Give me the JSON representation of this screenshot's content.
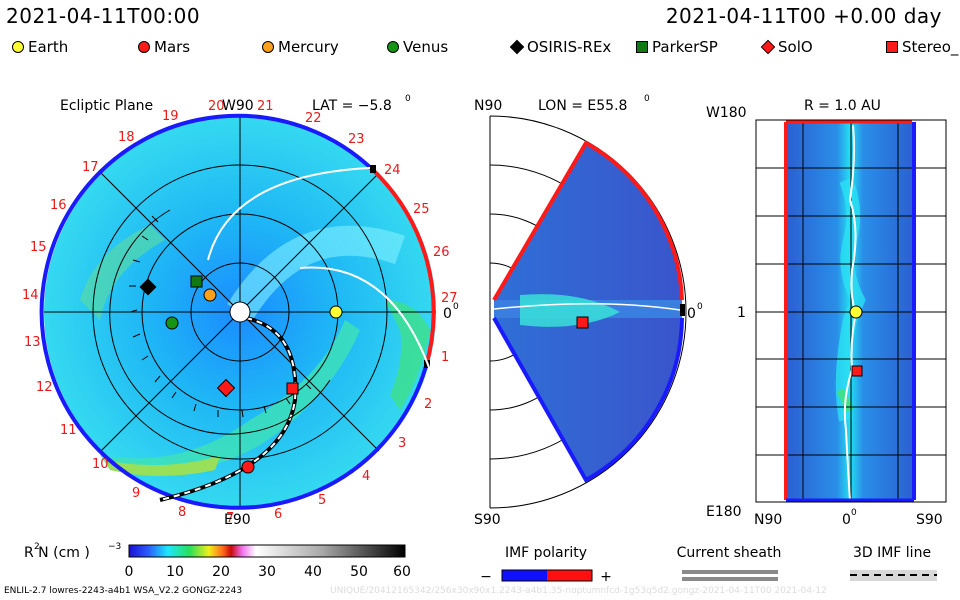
{
  "header": {
    "left": "2021-04-11T00:00",
    "right": "2021-04-11T00  +0.00 day"
  },
  "legend": [
    {
      "label": "Earth",
      "color": "#ffff33",
      "shape": "circle",
      "icon": "earth-marker-icon"
    },
    {
      "label": "Mars",
      "color": "#ff1a1a",
      "shape": "circle",
      "icon": "mars-marker-icon"
    },
    {
      "label": "Mercury",
      "color": "#ff9f1a",
      "shape": "circle",
      "icon": "mercury-marker-icon"
    },
    {
      "label": "Venus",
      "color": "#159415",
      "shape": "circle",
      "icon": "venus-marker-icon"
    },
    {
      "label": "OSIRIS-REx",
      "color": "#000000",
      "shape": "diamond",
      "icon": "osiris-rex-marker-icon"
    },
    {
      "label": "ParkerSP",
      "color": "#0f7a0f",
      "shape": "square",
      "icon": "parker-marker-icon"
    },
    {
      "label": "SolO",
      "color": "#ff1a1a",
      "shape": "diamond",
      "icon": "solo-marker-icon"
    },
    {
      "label": "Stereo_",
      "color": "#ff1a1a",
      "shape": "square",
      "icon": "stereo-marker-icon"
    }
  ],
  "ecliptic": {
    "title": "Ecliptic Plane",
    "top_label": "W90",
    "bottom_label": "E90",
    "right_label": "0",
    "lat_label": "LAT = −5.8",
    "carrington_labels": [
      "1",
      "2",
      "3",
      "4",
      "5",
      "6",
      "7",
      "8",
      "9",
      "10",
      "11",
      "12",
      "13",
      "14",
      "15",
      "16",
      "17",
      "18",
      "19",
      "20",
      "21",
      "22",
      "23",
      "24",
      "25",
      "26",
      "27"
    ]
  },
  "meridional": {
    "lon_label": "LON = E55.8",
    "top_label": "N90",
    "bottom_label": "S90",
    "right_label": "0"
  },
  "radial": {
    "r_label": "R = 1.0 AU",
    "top_label": "W180",
    "bottom_label": "E180",
    "left_label": "1",
    "axis_labels": [
      "N90",
      "0",
      "S90"
    ]
  },
  "colorbar": {
    "label": "R  N (cm  )",
    "ticks": [
      "0",
      "10",
      "20",
      "30",
      "40",
      "50",
      "60"
    ]
  },
  "imf_polarity": {
    "title": "IMF polarity",
    "minus": "−",
    "plus": "+",
    "neg_color": "#1010ff",
    "pos_color": "#ff1010"
  },
  "current_sheath": {
    "title": "Current sheath"
  },
  "imf_line": {
    "title": "3D IMF line"
  },
  "footer": {
    "left": "ENLIL-2.7 lowres-2243-a4b1 WSA_V2.2 GONGZ-2243",
    "faint": "UNIQUE/20412165342/256x30x90x1.2243-a4b1.35-noptumnfcd-1g53q5d2.gongz-2021-04-11T00    2021-04-12"
  }
}
